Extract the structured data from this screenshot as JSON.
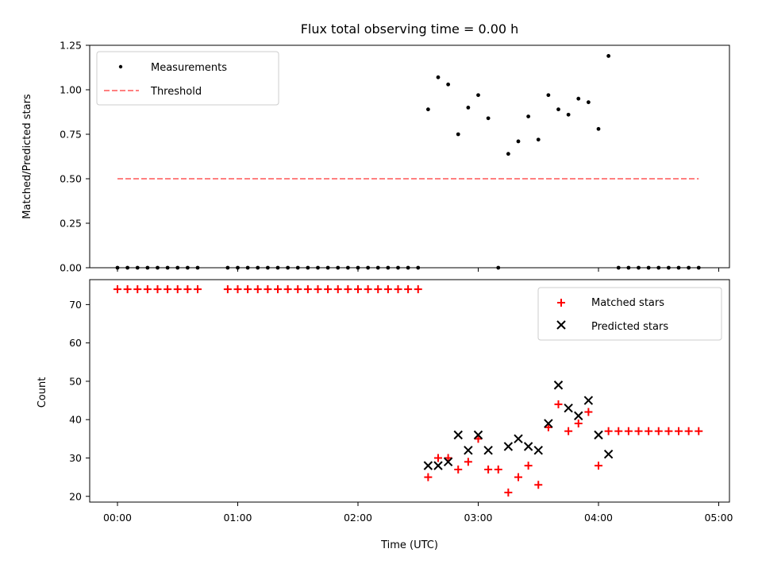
{
  "chart_data": [
    {
      "type": "scatter",
      "title": "Flux total observing time = 0.00 h",
      "xlabel": "",
      "ylabel": "Matched/Predicted stars",
      "ylim": [
        0,
        1.25
      ],
      "yticks": [
        "0.00",
        "0.25",
        "0.50",
        "0.75",
        "1.00",
        "1.25"
      ],
      "legend_position": "top-left",
      "series": [
        {
          "name": "Measurements",
          "marker": "dot",
          "color": "#000000",
          "x": [
            "00:00",
            "00:05",
            "00:10",
            "00:15",
            "00:20",
            "00:25",
            "00:30",
            "00:35",
            "00:40",
            "00:55",
            "01:00",
            "01:05",
            "01:10",
            "01:15",
            "01:20",
            "01:25",
            "01:30",
            "01:35",
            "01:40",
            "01:45",
            "01:50",
            "01:55",
            "02:00",
            "02:05",
            "02:10",
            "02:15",
            "02:20",
            "02:25",
            "02:30",
            "02:35",
            "02:40",
            "02:45",
            "02:50",
            "02:55",
            "03:00",
            "03:05",
            "03:10",
            "03:15",
            "03:20",
            "03:25",
            "03:30",
            "03:35",
            "03:40",
            "03:45",
            "03:50",
            "03:55",
            "04:00",
            "04:05",
            "04:10",
            "04:15",
            "04:20",
            "04:25",
            "04:30",
            "04:35",
            "04:40",
            "04:45",
            "04:50"
          ],
          "y": [
            0,
            0,
            0,
            0,
            0,
            0,
            0,
            0,
            0,
            0,
            0,
            0,
            0,
            0,
            0,
            0,
            0,
            0,
            0,
            0,
            0,
            0,
            0,
            0,
            0,
            0,
            0,
            0,
            0,
            0.89,
            1.07,
            1.03,
            0.75,
            0.9,
            0.97,
            0.84,
            0,
            0.64,
            0.71,
            0.85,
            0.72,
            0.97,
            0.89,
            0.86,
            0.95,
            0.93,
            0.78,
            1.19,
            0,
            0,
            0,
            0,
            0,
            0,
            0,
            0,
            0
          ]
        },
        {
          "name": "Threshold",
          "style": "dashed",
          "color": "#ff8080",
          "x": [
            "00:00",
            "04:50"
          ],
          "y": [
            0.5,
            0.5
          ]
        }
      ]
    },
    {
      "type": "scatter",
      "xlabel": "Time (UTC)",
      "ylabel": "Count",
      "ylim": [
        18.5,
        76.5
      ],
      "yticks": [
        "20",
        "30",
        "40",
        "50",
        "60",
        "70"
      ],
      "xticks": [
        "00:00",
        "01:00",
        "02:00",
        "03:00",
        "04:00",
        "05:00"
      ],
      "legend_position": "top-right",
      "series": [
        {
          "name": "Matched stars",
          "marker": "plus",
          "color": "#ff0000",
          "x": [
            "00:00",
            "00:05",
            "00:10",
            "00:15",
            "00:20",
            "00:25",
            "00:30",
            "00:35",
            "00:40",
            "00:55",
            "01:00",
            "01:05",
            "01:10",
            "01:15",
            "01:20",
            "01:25",
            "01:30",
            "01:35",
            "01:40",
            "01:45",
            "01:50",
            "01:55",
            "02:00",
            "02:05",
            "02:10",
            "02:15",
            "02:20",
            "02:25",
            "02:30",
            "02:35",
            "02:40",
            "02:45",
            "02:50",
            "02:55",
            "03:00",
            "03:05",
            "03:10",
            "03:15",
            "03:20",
            "03:25",
            "03:30",
            "03:35",
            "03:40",
            "03:45",
            "03:50",
            "03:55",
            "04:00",
            "04:05",
            "04:10",
            "04:15",
            "04:20",
            "04:25",
            "04:30",
            "04:35",
            "04:40",
            "04:45",
            "04:50"
          ],
          "y": [
            74,
            74,
            74,
            74,
            74,
            74,
            74,
            74,
            74,
            74,
            74,
            74,
            74,
            74,
            74,
            74,
            74,
            74,
            74,
            74,
            74,
            74,
            74,
            74,
            74,
            74,
            74,
            74,
            74,
            25,
            30,
            30,
            27,
            29,
            35,
            27,
            27,
            21,
            25,
            28,
            23,
            38,
            44,
            37,
            39,
            42,
            28,
            37,
            37,
            37,
            37,
            37,
            37,
            37,
            37,
            37,
            37
          ]
        },
        {
          "name": "Predicted stars",
          "marker": "x",
          "color": "#000000",
          "x": [
            "02:35",
            "02:40",
            "02:45",
            "02:50",
            "02:55",
            "03:00",
            "03:05",
            "03:15",
            "03:20",
            "03:25",
            "03:30",
            "03:35",
            "03:40",
            "03:45",
            "03:50",
            "03:55",
            "04:00",
            "04:05"
          ],
          "y": [
            28,
            28,
            29,
            36,
            32,
            36,
            32,
            33,
            35,
            33,
            32,
            39,
            49,
            43,
            41,
            45,
            36,
            31
          ]
        }
      ]
    }
  ]
}
